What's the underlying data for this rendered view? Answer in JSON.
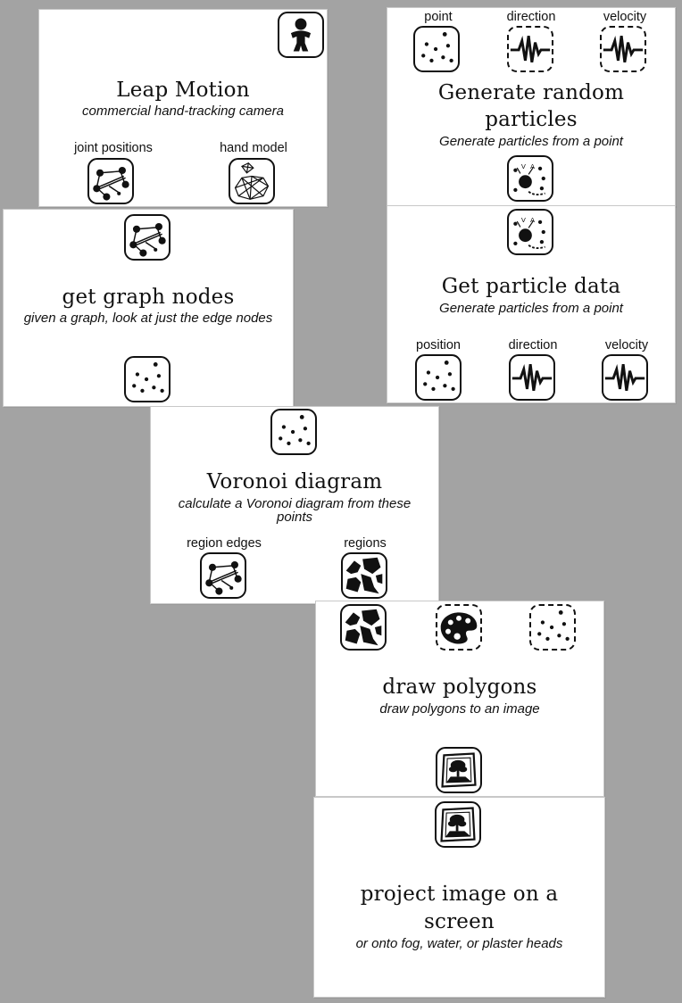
{
  "cards": {
    "leap": {
      "title": "Leap Motion",
      "subtitle": "commercial hand-tracking camera",
      "outputs": [
        "joint positions",
        "hand model"
      ],
      "icons": {
        "top": "person-icon",
        "out1": "graph-nodes-icon",
        "out2": "hand-mesh-icon"
      }
    },
    "random": {
      "title_line1": "Generate random",
      "title_line2": "particles",
      "subtitle": "Generate particles from a point",
      "inputs": [
        "point",
        "direction",
        "velocity"
      ],
      "icons": {
        "in1": "dots-icon",
        "in2": "waveform-icon",
        "in3": "waveform-icon",
        "out": "particles-icon"
      }
    },
    "graph": {
      "title": "get graph nodes",
      "subtitle": "given a graph, look at just the edge nodes",
      "icons": {
        "top": "graph-nodes-icon",
        "out": "dots-icon"
      }
    },
    "particle_data": {
      "title": "Get particle data",
      "subtitle": "Generate particles from a point",
      "outputs": [
        "position",
        "direction",
        "velocity"
      ],
      "icons": {
        "top": "particles-icon",
        "out1": "dots-icon",
        "out2": "waveform-icon",
        "out3": "waveform-icon"
      }
    },
    "voronoi": {
      "title": "Voronoi diagram",
      "subtitle_line1": "calculate a Voronoi diagram from these",
      "subtitle_line2": "points",
      "outputs": [
        "region edges",
        "regions"
      ],
      "icons": {
        "top": "dots-icon",
        "out1": "graph-nodes-icon",
        "out2": "regions-icon"
      }
    },
    "polygons": {
      "title": "draw polygons",
      "subtitle": "draw polygons to an image",
      "icons": {
        "in1": "regions-icon",
        "in2": "palette-icon",
        "in3": "dots-icon",
        "out": "framed-tree-icon"
      }
    },
    "project": {
      "title_line1": "project image on a",
      "title_line2": "screen",
      "subtitle": "or onto fog, water, or plaster heads",
      "icons": {
        "top": "framed-tree-icon"
      }
    }
  },
  "colors": {
    "background": "#a3a3a3",
    "card": "#ffffff",
    "ink": "#111111"
  }
}
